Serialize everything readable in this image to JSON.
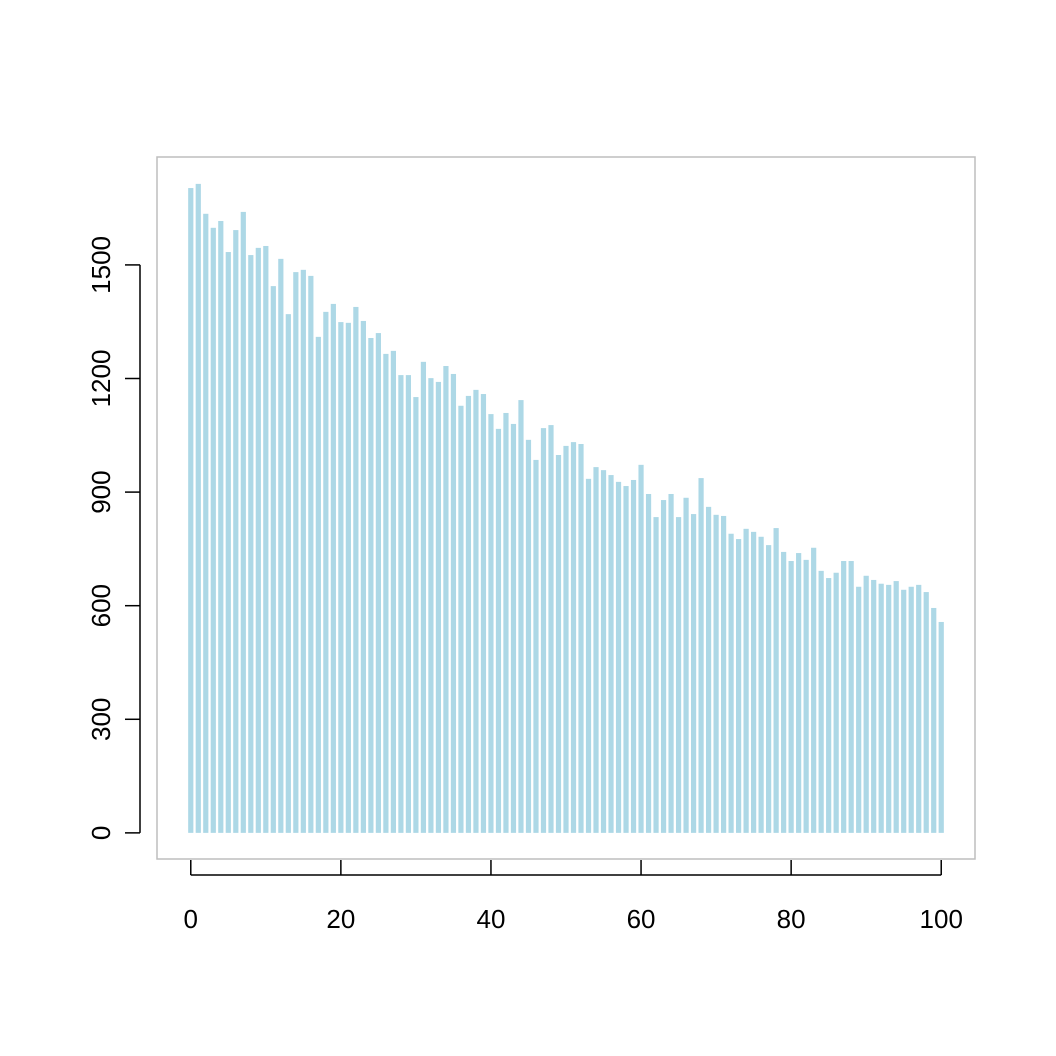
{
  "chart_data": {
    "type": "bar",
    "x": [
      0,
      1,
      2,
      3,
      4,
      5,
      6,
      7,
      8,
      9,
      10,
      11,
      12,
      13,
      14,
      15,
      16,
      17,
      18,
      19,
      20,
      21,
      22,
      23,
      24,
      25,
      26,
      27,
      28,
      29,
      30,
      31,
      32,
      33,
      34,
      35,
      36,
      37,
      38,
      39,
      40,
      41,
      42,
      43,
      44,
      45,
      46,
      47,
      48,
      49,
      50,
      51,
      52,
      53,
      54,
      55,
      56,
      57,
      58,
      59,
      60,
      61,
      62,
      63,
      64,
      65,
      66,
      67,
      68,
      69,
      70,
      71,
      72,
      73,
      74,
      75,
      76,
      77,
      78,
      79,
      80,
      81,
      82,
      83,
      84,
      85,
      86,
      87,
      88,
      89,
      90,
      91,
      92,
      93,
      94,
      95,
      96,
      97,
      98,
      99,
      100
    ],
    "values": [
      1703,
      1714,
      1635,
      1598,
      1616,
      1534,
      1592,
      1640,
      1526,
      1545,
      1550,
      1444,
      1516,
      1370,
      1481,
      1487,
      1471,
      1310,
      1376,
      1397,
      1349,
      1347,
      1389,
      1352,
      1307,
      1320,
      1265,
      1273,
      1209,
      1209,
      1151,
      1244,
      1201,
      1191,
      1233,
      1212,
      1128,
      1154,
      1170,
      1159,
      1106,
      1067,
      1109,
      1080,
      1143,
      1038,
      985,
      1069,
      1077,
      998,
      1022,
      1032,
      1027,
      935,
      966,
      958,
      945,
      927,
      916,
      932,
      972,
      895,
      834,
      879,
      895,
      834,
      885,
      842,
      937,
      861,
      840,
      837,
      790,
      776,
      803,
      795,
      782,
      760,
      805,
      742,
      718,
      739,
      721,
      753,
      692,
      673,
      687,
      718,
      718,
      650,
      679,
      668,
      658,
      655,
      665,
      642,
      650,
      655,
      636,
      594,
      557
    ],
    "color": "#add8e6",
    "xlim": [
      -4.5,
      104.5
    ],
    "xticks": [
      0,
      20,
      40,
      60,
      80,
      100
    ],
    "ylim": [
      -69,
      1785
    ],
    "yticks": [
      0,
      300,
      600,
      900,
      1200,
      1500
    ]
  }
}
